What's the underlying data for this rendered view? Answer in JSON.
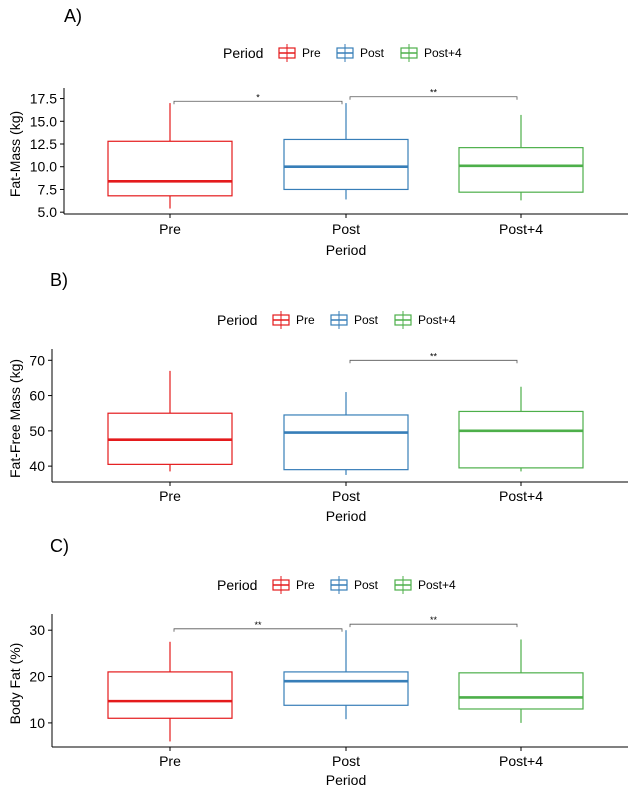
{
  "colors": {
    "Pre": "#E41A1C",
    "Post": "#377EB8",
    "Post+4": "#4DAF4A",
    "axis": "#000000",
    "bracket": "#555555"
  },
  "chart_data": [
    {
      "panel_label": "A)",
      "type": "box",
      "legend_title": "Period",
      "legend_position": "top",
      "xlabel": "Period",
      "ylabel": "Fat-Mass (kg)",
      "categories": [
        "Pre",
        "Post",
        "Post+4"
      ],
      "yticks": [
        5.0,
        7.5,
        10.0,
        12.5,
        15.0,
        17.5
      ],
      "ytick_labels": [
        "5.0",
        "7.5",
        "10.0",
        "12.5",
        "15.0",
        "17.5"
      ],
      "ylim": [
        4.8,
        18.0
      ],
      "boxes": [
        {
          "name": "Pre",
          "min": 5.4,
          "q1": 6.8,
          "median": 8.4,
          "q3": 12.8,
          "max": 17.0
        },
        {
          "name": "Post",
          "min": 6.4,
          "q1": 7.5,
          "median": 10.0,
          "q3": 13.0,
          "max": 17.0
        },
        {
          "name": "Post+4",
          "min": 6.3,
          "q1": 7.2,
          "median": 10.1,
          "q3": 12.1,
          "max": 15.7
        }
      ],
      "annotations": [
        {
          "from": 0,
          "to": 1,
          "label": "*",
          "y": 17.2
        },
        {
          "from": 1,
          "to": 2,
          "label": "**",
          "y": 17.7
        }
      ]
    },
    {
      "panel_label": "B)",
      "type": "box",
      "legend_title": "Period",
      "legend_position": "top",
      "xlabel": "Period",
      "ylabel": "Fat-Free Mass (kg)",
      "categories": [
        "Pre",
        "Post",
        "Post+4"
      ],
      "yticks": [
        40,
        50,
        60,
        70
      ],
      "ytick_labels": [
        "40",
        "50",
        "60",
        "70"
      ],
      "ylim": [
        35.5,
        71.5
      ],
      "boxes": [
        {
          "name": "Pre",
          "min": 38.5,
          "q1": 40.5,
          "median": 47.5,
          "q3": 55.0,
          "max": 67.0
        },
        {
          "name": "Post",
          "min": 37.5,
          "q1": 39.0,
          "median": 49.5,
          "q3": 54.5,
          "max": 61.0
        },
        {
          "name": "Post+4",
          "min": 38.5,
          "q1": 39.5,
          "median": 50.0,
          "q3": 55.5,
          "max": 62.5
        }
      ],
      "annotations": [
        {
          "from": 1,
          "to": 2,
          "label": "**",
          "y": 70.0
        }
      ]
    },
    {
      "panel_label": "C)",
      "type": "box",
      "legend_title": "Period",
      "legend_position": "top",
      "xlabel": "Period",
      "ylabel": "Body Fat (%)",
      "categories": [
        "Pre",
        "Post",
        "Post+4"
      ],
      "yticks": [
        10,
        20,
        30
      ],
      "ytick_labels": [
        "10",
        "20",
        "30"
      ],
      "ylim": [
        4.8,
        32.2
      ],
      "boxes": [
        {
          "name": "Pre",
          "min": 6.0,
          "q1": 11.0,
          "median": 14.7,
          "q3": 21.0,
          "max": 27.5
        },
        {
          "name": "Post",
          "min": 10.8,
          "q1": 13.8,
          "median": 19.0,
          "q3": 21.0,
          "max": 30.0
        },
        {
          "name": "Post+4",
          "min": 10.0,
          "q1": 13.0,
          "median": 15.5,
          "q3": 20.8,
          "max": 28.0
        }
      ],
      "annotations": [
        {
          "from": 0,
          "to": 1,
          "label": "**",
          "y": 30.3
        },
        {
          "from": 1,
          "to": 2,
          "label": "**",
          "y": 31.3
        }
      ]
    }
  ]
}
